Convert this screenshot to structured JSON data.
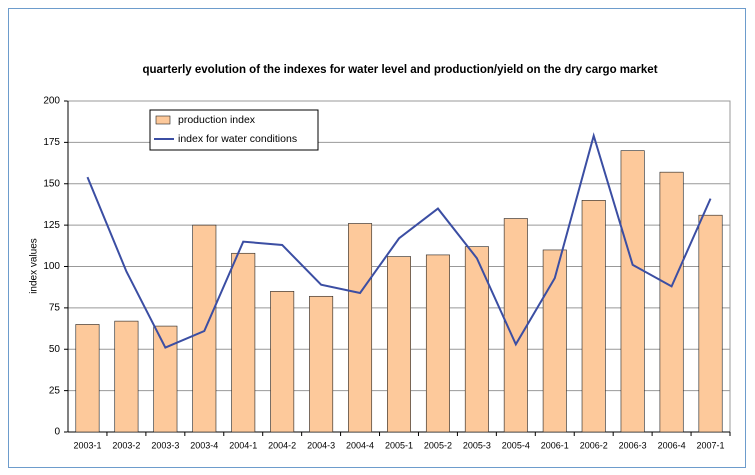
{
  "chart_data": {
    "type": "bar",
    "title": "quarterly evolution of the indexes for water level and production/yield on the dry cargo market",
    "y_label": "index values",
    "categories": [
      "2003-1",
      "2003-2",
      "2003-3",
      "2003-4",
      "2004-1",
      "2004-2",
      "2004-3",
      "2004-4",
      "2005-1",
      "2005-2",
      "2005-3",
      "2005-4",
      "2006-1",
      "2006-2",
      "2006-3",
      "2006-4",
      "2007-1"
    ],
    "series": [
      {
        "name": "production index",
        "type": "bar",
        "color": "#fdc99b",
        "values": [
          65,
          67,
          64,
          125,
          108,
          85,
          82,
          126,
          106,
          107,
          112,
          129,
          110,
          140,
          170,
          157,
          131
        ]
      },
      {
        "name": "index for water conditions",
        "type": "line",
        "color": "#3b4ea3",
        "values": [
          154,
          97,
          51,
          61,
          115,
          113,
          89,
          84,
          117,
          135,
          105,
          53,
          93,
          179,
          101,
          88,
          141
        ]
      }
    ],
    "ylim": [
      0,
      200
    ],
    "yticks": [
      0,
      25,
      50,
      75,
      100,
      125,
      150,
      175,
      200
    ],
    "grid": true,
    "legend": "top-left"
  }
}
